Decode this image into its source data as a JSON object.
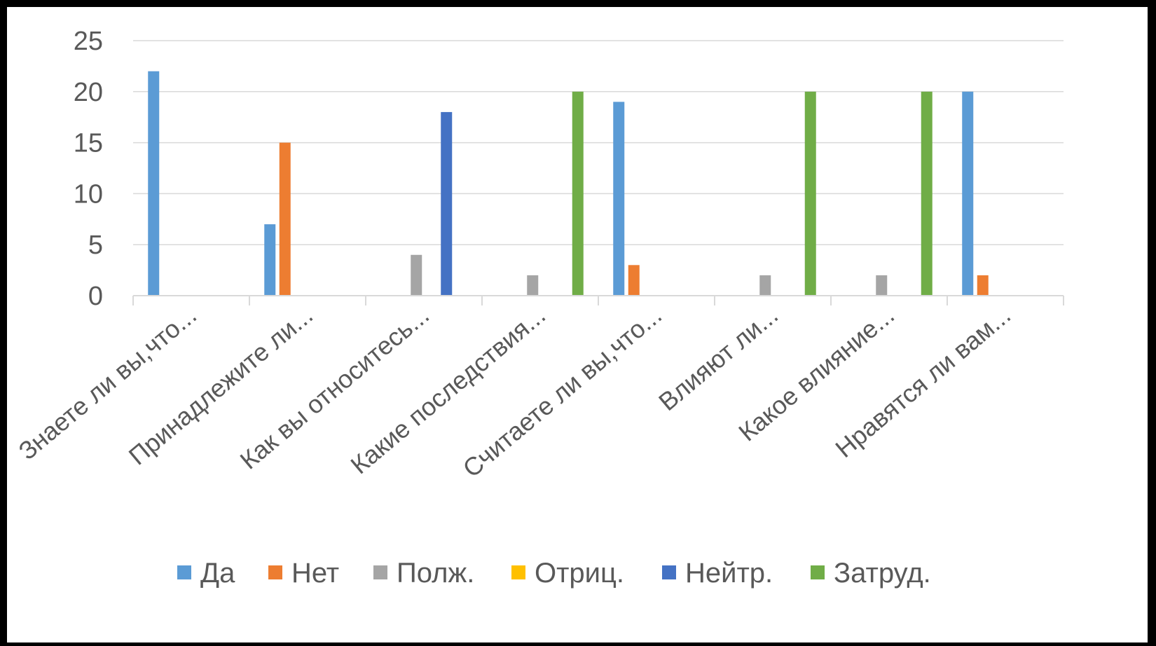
{
  "chart_data": {
    "type": "bar",
    "categories": [
      "Знаете ли вы,что...",
      "Принадлежите ли...",
      "Как вы относитесь...",
      "Какие последствия...",
      "Считаете ли вы,что...",
      "Влияют ли...",
      "Какое влияние...",
      "Нравятся ли вам..."
    ],
    "series": [
      {
        "name": "Да",
        "color": "#5B9BD5",
        "values": [
          22,
          7,
          0,
          0,
          19,
          0,
          0,
          20
        ]
      },
      {
        "name": "Нет",
        "color": "#ED7D31",
        "values": [
          0,
          15,
          0,
          0,
          3,
          0,
          0,
          2
        ]
      },
      {
        "name": "Полж.",
        "color": "#A5A5A5",
        "values": [
          0,
          0,
          4,
          2,
          0,
          2,
          2,
          0
        ]
      },
      {
        "name": "Отриц.",
        "color": "#FFC000",
        "values": [
          0,
          0,
          0,
          0,
          0,
          0,
          0,
          0
        ]
      },
      {
        "name": "Нейтр.",
        "color": "#4472C4",
        "values": [
          0,
          0,
          18,
          0,
          0,
          0,
          0,
          0
        ]
      },
      {
        "name": "Затруд.",
        "color": "#70AD47",
        "values": [
          0,
          0,
          0,
          20,
          0,
          20,
          20,
          0
        ]
      }
    ],
    "yticks": [
      "0",
      "5",
      "10",
      "15",
      "20",
      "25"
    ],
    "ylim": [
      0,
      25
    ],
    "grid": true,
    "legend_position": "bottom",
    "title": "",
    "xlabel": "",
    "ylabel": ""
  }
}
